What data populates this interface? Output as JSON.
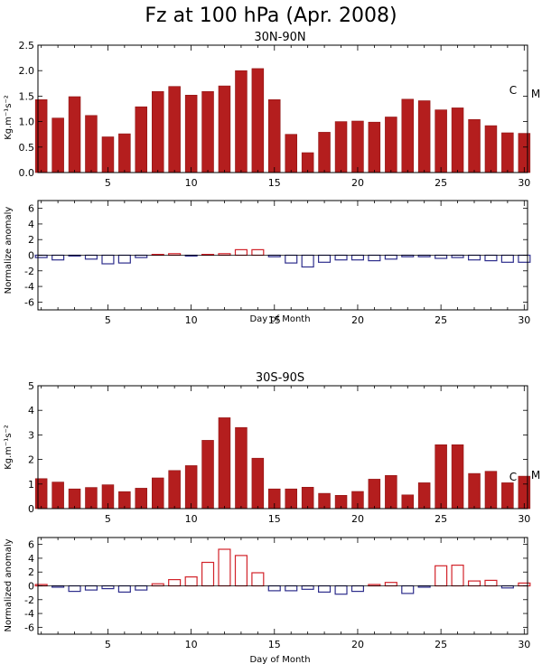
{
  "title": "Fz at 100 hPa (Apr. 2008)",
  "colors": {
    "bar_fill": "#B41E1E",
    "bar_stroke": "#8F1515",
    "anom_pos": "#D2232A",
    "anom_neg": "#2E2E8C",
    "axis": "#000000"
  },
  "panels": [
    {
      "id": "nh",
      "title": "30N-90N",
      "ylabel": "Kg.m⁻¹s⁻²",
      "xticks": [
        "5",
        "10",
        "15",
        "20",
        "25",
        "30"
      ],
      "yticks": [
        "0.0",
        "0.5",
        "1.0",
        "1.5",
        "2.0",
        "2.5"
      ],
      "markers": [
        "C",
        "M"
      ],
      "anom_ylabel": "Normalize anomaly",
      "anom_yticks": [
        "-6",
        "-4",
        "-2",
        "0",
        "2",
        "4",
        "6"
      ],
      "anom_xticks": [
        "5",
        "10",
        "15",
        "20",
        "25",
        "30"
      ],
      "anom_xlabel": "Day of Month"
    },
    {
      "id": "sh",
      "title": "30S-90S",
      "ylabel": "Kg.m⁻¹s⁻²",
      "xticks": [
        "5",
        "10",
        "15",
        "20",
        "25",
        "30"
      ],
      "yticks": [
        "0",
        "1",
        "2",
        "3",
        "4",
        "5"
      ],
      "markers": [
        "C",
        "M"
      ],
      "anom_ylabel": "Normalized anomaly",
      "anom_yticks": [
        "-6",
        "-4",
        "-2",
        "0",
        "2",
        "4",
        "6"
      ],
      "anom_xticks": [
        "5",
        "10",
        "15",
        "20",
        "25",
        "30"
      ],
      "anom_xlabel": "Day of Month"
    }
  ],
  "chart_data": [
    {
      "type": "bar",
      "title": "30N-90N",
      "ylabel": "Kg.m⁻¹s⁻²",
      "xlabel": "",
      "x": [
        1,
        2,
        3,
        4,
        5,
        6,
        7,
        8,
        9,
        10,
        11,
        12,
        13,
        14,
        15,
        16,
        17,
        18,
        19,
        20,
        21,
        22,
        23,
        24,
        25,
        26,
        27,
        28,
        29,
        30
      ],
      "values": [
        1.43,
        1.07,
        1.49,
        1.12,
        0.7,
        0.76,
        1.29,
        1.59,
        1.69,
        1.52,
        1.59,
        1.7,
        2.0,
        2.04,
        1.43,
        0.75,
        0.39,
        0.79,
        1.0,
        1.01,
        0.99,
        1.09,
        1.44,
        1.41,
        1.23,
        1.27,
        1.04,
        0.92,
        0.78,
        0.77
      ],
      "xlim": [
        0.8,
        30.2
      ],
      "ylim": [
        0,
        2.5
      ],
      "yticks": [
        0,
        0.5,
        1.0,
        1.5,
        2.0,
        2.5
      ],
      "xticks": [
        5,
        10,
        15,
        20,
        25,
        30
      ],
      "annotations": [
        "C",
        "M"
      ],
      "grid": false
    },
    {
      "type": "bar",
      "title": "",
      "ylabel": "Normalize anomaly",
      "xlabel": "Day of Month",
      "style": "open",
      "x": [
        1,
        2,
        3,
        4,
        5,
        6,
        7,
        8,
        9,
        10,
        11,
        12,
        13,
        14,
        15,
        16,
        17,
        18,
        19,
        20,
        21,
        22,
        23,
        24,
        25,
        26,
        27,
        28,
        29,
        30
      ],
      "values": [
        -0.3,
        -0.6,
        -0.1,
        -0.5,
        -1.1,
        -1.0,
        -0.3,
        0.1,
        0.2,
        -0.1,
        0.1,
        0.2,
        0.7,
        0.7,
        -0.2,
        -1.0,
        -1.5,
        -0.9,
        -0.6,
        -0.6,
        -0.7,
        -0.5,
        -0.2,
        -0.2,
        -0.4,
        -0.3,
        -0.6,
        -0.7,
        -0.9,
        -0.9
      ],
      "xlim": [
        0.8,
        30.2
      ],
      "ylim": [
        -7,
        7
      ],
      "yticks": [
        -6,
        -4,
        -2,
        0,
        2,
        4,
        6
      ],
      "xticks": [
        5,
        10,
        15,
        20,
        25,
        30
      ],
      "grid": false
    },
    {
      "type": "bar",
      "title": "30S-90S",
      "ylabel": "Kg.m⁻¹s⁻²",
      "xlabel": "",
      "x": [
        1,
        2,
        3,
        4,
        5,
        6,
        7,
        8,
        9,
        10,
        11,
        12,
        13,
        14,
        15,
        16,
        17,
        18,
        19,
        20,
        21,
        22,
        23,
        24,
        25,
        26,
        27,
        28,
        29,
        30
      ],
      "values": [
        1.22,
        1.08,
        0.8,
        0.86,
        0.97,
        0.69,
        0.83,
        1.25,
        1.55,
        1.75,
        2.78,
        3.7,
        3.3,
        2.05,
        0.8,
        0.8,
        0.87,
        0.62,
        0.54,
        0.7,
        1.2,
        1.35,
        0.56,
        1.05,
        2.6,
        2.6,
        1.43,
        1.52,
        1.05,
        1.32
      ],
      "xlim": [
        0.8,
        30.2
      ],
      "ylim": [
        0,
        5
      ],
      "yticks": [
        0,
        1,
        2,
        3,
        4,
        5
      ],
      "xticks": [
        5,
        10,
        15,
        20,
        25,
        30
      ],
      "annotations": [
        "C",
        "M"
      ],
      "grid": false
    },
    {
      "type": "bar",
      "title": "",
      "ylabel": "Normalized anomaly",
      "xlabel": "Day of Month",
      "style": "open",
      "x": [
        1,
        2,
        3,
        4,
        5,
        6,
        7,
        8,
        9,
        10,
        11,
        12,
        13,
        14,
        15,
        16,
        17,
        18,
        19,
        20,
        21,
        22,
        23,
        24,
        25,
        26,
        27,
        28,
        29,
        30
      ],
      "values": [
        0.2,
        -0.2,
        -0.8,
        -0.6,
        -0.4,
        -0.9,
        -0.6,
        0.3,
        0.9,
        1.3,
        3.4,
        5.3,
        4.4,
        1.9,
        -0.7,
        -0.7,
        -0.5,
        -0.9,
        -1.2,
        -0.8,
        0.2,
        0.5,
        -1.1,
        -0.2,
        2.9,
        3.0,
        0.7,
        0.8,
        -0.3,
        0.4
      ],
      "xlim": [
        0.8,
        30.2
      ],
      "ylim": [
        -7,
        7
      ],
      "yticks": [
        -6,
        -4,
        -2,
        0,
        2,
        4,
        6
      ],
      "xticks": [
        5,
        10,
        15,
        20,
        25,
        30
      ],
      "grid": false
    }
  ]
}
